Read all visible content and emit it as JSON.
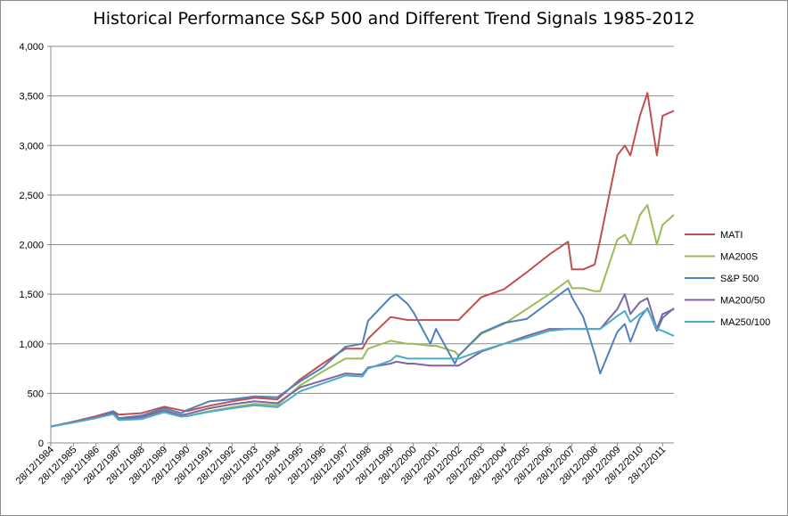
{
  "chart_data": {
    "type": "line",
    "title": "Historical Performance S&P 500 and Different Trend Signals 1985-2012",
    "xlabel": "",
    "ylabel": "",
    "ylim": [
      0,
      4000
    ],
    "yticks": [
      0,
      500,
      1000,
      1500,
      2000,
      2500,
      3000,
      3500,
      4000
    ],
    "ytick_labels": [
      "0",
      "500",
      "1,000",
      "1,500",
      "2,000",
      "2,500",
      "3,000",
      "3,500",
      "4,000"
    ],
    "xlim": [
      "1984-12-28",
      "2012-06-28"
    ],
    "xtick_labels": [
      "28/12/1984",
      "28/12/1985",
      "28/12/1986",
      "28/12/1987",
      "28/12/1988",
      "28/12/1989",
      "28/12/1990",
      "28/12/1991",
      "28/12/1992",
      "28/12/1993",
      "28/12/1994",
      "28/12/1995",
      "28/12/1996",
      "28/12/1997",
      "28/12/1998",
      "28/12/1999",
      "28/12/2000",
      "28/12/2001",
      "28/12/2002",
      "28/12/2003",
      "28/12/2004",
      "28/12/2005",
      "28/12/2006",
      "28/12/2007",
      "28/12/2008",
      "28/12/2009",
      "28/12/2010",
      "28/12/2011"
    ],
    "grid": true,
    "legend_position": "right",
    "x": [
      "1984-12-28",
      "1985-12-28",
      "1986-12-28",
      "1987-09-28",
      "1987-12-28",
      "1988-12-28",
      "1989-12-28",
      "1990-09-28",
      "1990-12-28",
      "1991-12-28",
      "1992-12-28",
      "1993-12-28",
      "1994-12-28",
      "1995-12-28",
      "1996-12-28",
      "1997-12-28",
      "1998-09-28",
      "1998-12-28",
      "1999-12-28",
      "2000-03-28",
      "2000-09-28",
      "2000-12-28",
      "2001-09-28",
      "2001-12-28",
      "2002-10-28",
      "2002-12-28",
      "2003-12-28",
      "2004-12-28",
      "2005-12-28",
      "2006-12-28",
      "2007-10-28",
      "2007-12-28",
      "2008-06-28",
      "2008-12-28",
      "2009-03-28",
      "2009-12-28",
      "2010-04-28",
      "2010-07-28",
      "2010-12-28",
      "2011-04-28",
      "2011-09-28",
      "2011-12-28",
      "2012-06-28"
    ],
    "series": [
      {
        "name": "MATI",
        "color": "#c0504d",
        "values": [
          165,
          215,
          270,
          320,
          285,
          300,
          365,
          330,
          320,
          375,
          420,
          455,
          440,
          640,
          800,
          950,
          950,
          1050,
          1270,
          1260,
          1240,
          1240,
          1240,
          1240,
          1240,
          1240,
          1470,
          1550,
          1720,
          1900,
          2030,
          1750,
          1750,
          1800,
          2050,
          2900,
          3000,
          2900,
          3300,
          3530,
          2900,
          3300,
          3350
        ]
      },
      {
        "name": "MA200S",
        "color": "#9bbb59",
        "values": [
          165,
          210,
          260,
          300,
          250,
          260,
          310,
          280,
          270,
          320,
          360,
          395,
          380,
          580,
          720,
          850,
          850,
          950,
          1030,
          1020,
          1000,
          1000,
          980,
          980,
          920,
          880,
          1100,
          1200,
          1350,
          1500,
          1640,
          1560,
          1560,
          1530,
          1530,
          2050,
          2100,
          2000,
          2300,
          2400,
          2000,
          2200,
          2300
        ]
      },
      {
        "name": "S&P 500",
        "color": "#4f81bd",
        "values": [
          165,
          210,
          250,
          320,
          250,
          275,
          350,
          300,
          330,
          420,
          440,
          470,
          460,
          620,
          760,
          970,
          1000,
          1230,
          1470,
          1500,
          1400,
          1320,
          1000,
          1150,
          800,
          880,
          1110,
          1210,
          1250,
          1420,
          1560,
          1470,
          1270,
          900,
          700,
          1120,
          1200,
          1020,
          1260,
          1360,
          1130,
          1260,
          1360
        ]
      },
      {
        "name": "MA200/50",
        "color": "#8064a2",
        "values": [
          165,
          210,
          260,
          300,
          240,
          260,
          330,
          280,
          290,
          350,
          390,
          420,
          400,
          560,
          630,
          700,
          690,
          760,
          800,
          820,
          800,
          800,
          780,
          780,
          780,
          780,
          920,
          1000,
          1080,
          1150,
          1150,
          1150,
          1150,
          1150,
          1150,
          1350,
          1500,
          1300,
          1420,
          1460,
          1150,
          1300,
          1350
        ]
      },
      {
        "name": "MA250/100",
        "color": "#4bacc6",
        "values": [
          165,
          205,
          250,
          290,
          230,
          240,
          310,
          265,
          270,
          315,
          350,
          380,
          360,
          520,
          600,
          680,
          670,
          750,
          830,
          880,
          850,
          850,
          850,
          850,
          850,
          850,
          930,
          1000,
          1060,
          1130,
          1150,
          1150,
          1150,
          1150,
          1150,
          1280,
          1330,
          1220,
          1300,
          1350,
          1150,
          1130,
          1080
        ]
      }
    ]
  }
}
